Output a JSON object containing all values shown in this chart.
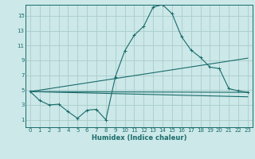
{
  "xlabel": "Humidex (Indice chaleur)",
  "background_color": "#cce8e8",
  "grid_color": "#aacccc",
  "line_color": "#1a6b6b",
  "xlim": [
    -0.5,
    23.5
  ],
  "ylim": [
    0,
    16.5
  ],
  "xticks": [
    0,
    1,
    2,
    3,
    4,
    5,
    6,
    7,
    8,
    9,
    10,
    11,
    12,
    13,
    14,
    15,
    16,
    17,
    18,
    19,
    20,
    21,
    22,
    23
  ],
  "yticks": [
    1,
    3,
    5,
    7,
    9,
    11,
    13,
    15
  ],
  "main_x": [
    0,
    1,
    2,
    3,
    4,
    5,
    6,
    7,
    8,
    9,
    10,
    11,
    12,
    13,
    14,
    15,
    16,
    17,
    18,
    19,
    20,
    21,
    22,
    23
  ],
  "main_y": [
    4.8,
    3.6,
    3.0,
    3.1,
    2.1,
    1.2,
    2.3,
    2.4,
    1.0,
    6.8,
    10.3,
    12.4,
    13.6,
    16.2,
    16.5,
    15.3,
    12.2,
    10.4,
    9.4,
    8.1,
    7.9,
    5.2,
    4.9,
    4.7
  ],
  "line2_x": [
    0,
    23
  ],
  "line2_y": [
    4.8,
    4.7
  ],
  "line3_x": [
    0,
    23
  ],
  "line3_y": [
    4.8,
    9.3
  ],
  "line4_x": [
    0,
    23
  ],
  "line4_y": [
    4.8,
    4.1
  ]
}
